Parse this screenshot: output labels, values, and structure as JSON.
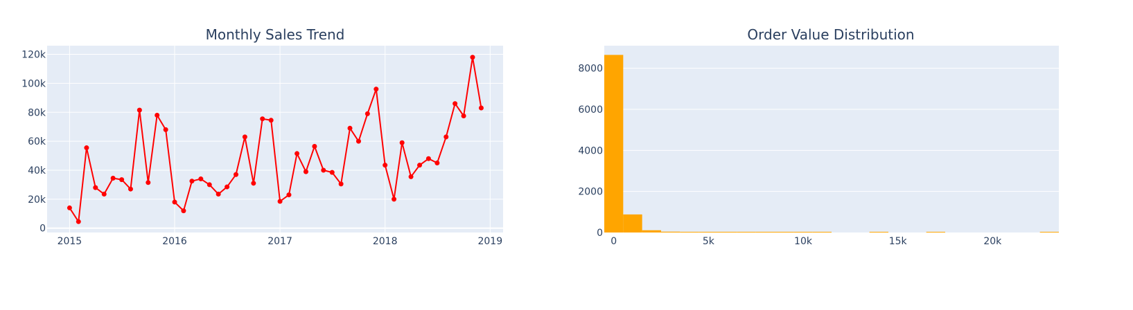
{
  "chart_data": [
    {
      "type": "line",
      "title": "Monthly Sales Trend",
      "xlabel": "",
      "ylabel": "",
      "x_tick_labels": [
        "2015",
        "2016",
        "2017",
        "2018",
        "2019"
      ],
      "y_tick_labels": [
        "0",
        "20k",
        "40k",
        "60k",
        "80k",
        "100k",
        "120k"
      ],
      "xlim": [
        "2014-10-15",
        "2019-02-15"
      ],
      "ylim": [
        -3000,
        126000
      ],
      "grid": true,
      "marker_color": "#ff0000",
      "series": [
        {
          "x": [
            "2015-01-01",
            "2015-02-01",
            "2015-03-01",
            "2015-04-01",
            "2015-05-01",
            "2015-06-01",
            "2015-07-01",
            "2015-08-01",
            "2015-09-01",
            "2015-10-01",
            "2015-11-01",
            "2015-12-01",
            "2016-01-01",
            "2016-02-01",
            "2016-03-01",
            "2016-04-01",
            "2016-05-01",
            "2016-06-01",
            "2016-07-01",
            "2016-08-01",
            "2016-09-01",
            "2016-10-01",
            "2016-11-01",
            "2016-12-01",
            "2017-01-01",
            "2017-02-01",
            "2017-03-01",
            "2017-04-01",
            "2017-05-01",
            "2017-06-01",
            "2017-07-01",
            "2017-08-01",
            "2017-09-01",
            "2017-10-01",
            "2017-11-01",
            "2017-12-01",
            "2018-01-01",
            "2018-02-01",
            "2018-03-01",
            "2018-04-01",
            "2018-05-01",
            "2018-06-01",
            "2018-07-01",
            "2018-08-01",
            "2018-09-01",
            "2018-10-01",
            "2018-11-01",
            "2018-12-01"
          ],
          "y": [
            14000,
            4500,
            55500,
            28000,
            23500,
            34500,
            33500,
            27000,
            81500,
            31500,
            78000,
            68000,
            18000,
            12000,
            32500,
            34000,
            30000,
            23500,
            28500,
            37000,
            63000,
            31000,
            75500,
            74500,
            18500,
            23000,
            51500,
            39000,
            56500,
            40000,
            38500,
            30500,
            69000,
            60000,
            79000,
            96000,
            43500,
            20000,
            59000,
            35500,
            43500,
            48000,
            45000,
            63000,
            86000,
            77500,
            118000,
            83000
          ]
        }
      ]
    },
    {
      "type": "bar",
      "title": "Order Value Distribution",
      "xlabel": "",
      "ylabel": "",
      "x_tick_labels": [
        "0",
        "5k",
        "10k",
        "15k",
        "20k"
      ],
      "y_tick_labels": [
        "0",
        "2000",
        "4000",
        "6000",
        "8000"
      ],
      "xlim": [
        -500,
        23500
      ],
      "ylim": [
        0,
        9100
      ],
      "grid": true,
      "bar_color": "#ffa500",
      "bin_width": 1000,
      "bins": [
        {
          "start": -500,
          "count": 8650
        },
        {
          "start": 500,
          "count": 880
        },
        {
          "start": 1500,
          "count": 110
        },
        {
          "start": 2500,
          "count": 40
        },
        {
          "start": 3500,
          "count": 15
        },
        {
          "start": 4500,
          "count": 10
        },
        {
          "start": 5500,
          "count": 8
        },
        {
          "start": 6500,
          "count": 6
        },
        {
          "start": 7500,
          "count": 5
        },
        {
          "start": 8500,
          "count": 4
        },
        {
          "start": 9500,
          "count": 3
        },
        {
          "start": 10500,
          "count": 2
        },
        {
          "start": 13500,
          "count": 1
        },
        {
          "start": 16500,
          "count": 1
        },
        {
          "start": 22500,
          "count": 1
        }
      ]
    }
  ]
}
